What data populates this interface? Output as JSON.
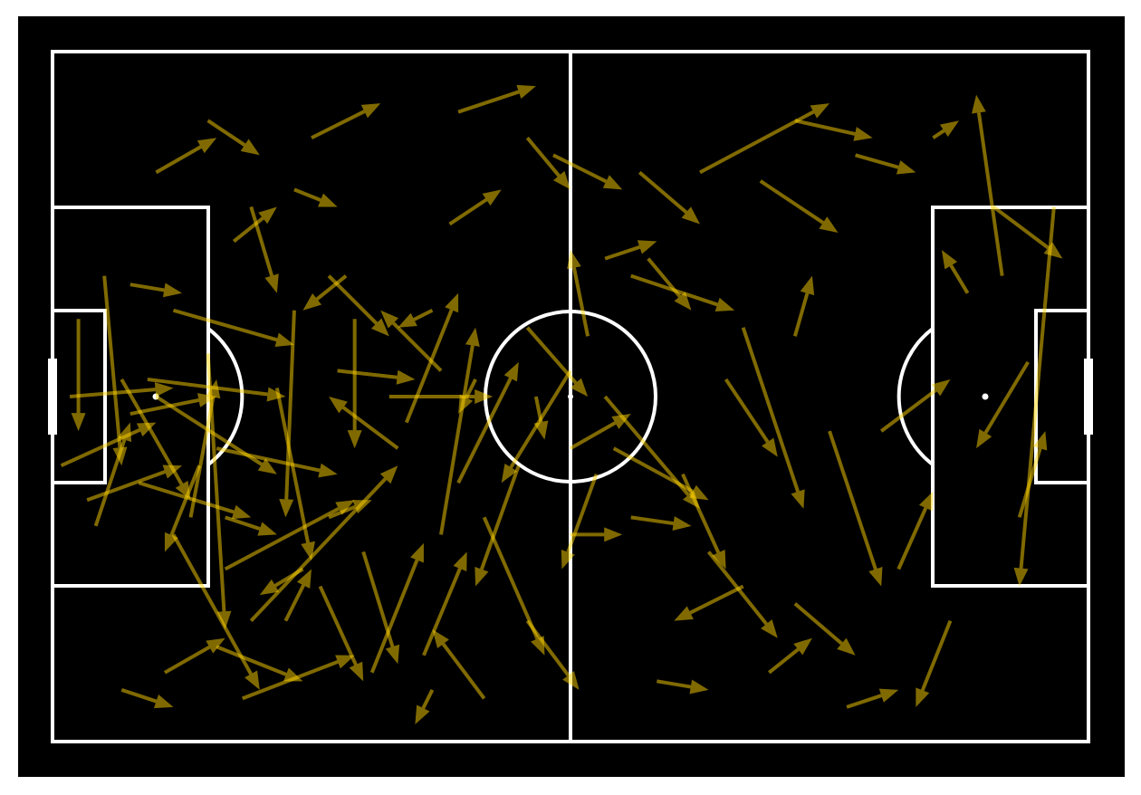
{
  "colors": {
    "background": "#000000",
    "lines": "#ffffff",
    "pass": "#ffd400"
  },
  "chart_data": {
    "type": "scatter",
    "subtype": "pass-map",
    "title": "",
    "xlabel": "",
    "ylabel": "",
    "pitch": {
      "length": 120,
      "width": 80,
      "units": "StatsBomb yards"
    },
    "passes": [
      [
        10,
        50,
        23,
        54
      ],
      [
        20,
        54,
        26,
        56
      ],
      [
        32,
        54,
        37,
        52
      ],
      [
        54,
        48,
        49,
        62
      ],
      [
        67,
        54,
        74,
        55
      ],
      [
        34,
        26,
        29,
        30
      ],
      [
        44,
        30,
        40,
        32
      ],
      [
        49,
        38,
        47,
        42
      ],
      [
        56,
        40,
        57,
        45
      ],
      [
        65,
        46,
        76,
        52
      ],
      [
        3,
        31,
        3,
        44
      ],
      [
        5,
        55,
        9,
        43
      ],
      [
        6,
        26,
        8,
        48
      ],
      [
        9,
        42,
        19,
        40
      ],
      [
        11,
        38,
        27,
        40
      ],
      [
        12,
        40,
        26,
        49
      ],
      [
        14,
        30,
        28,
        34
      ],
      [
        14,
        56,
        24,
        74
      ],
      [
        16,
        54,
        19,
        38
      ],
      [
        18,
        35,
        20,
        67
      ],
      [
        19,
        46,
        33,
        49
      ],
      [
        19,
        69,
        29,
        73
      ],
      [
        20,
        60,
        35,
        52
      ],
      [
        23,
        66,
        40,
        48
      ],
      [
        26,
        39,
        30,
        59
      ],
      [
        28,
        30,
        27,
        54
      ],
      [
        29,
        60,
        24,
        63
      ],
      [
        31,
        62,
        36,
        73
      ],
      [
        32,
        26,
        39,
        33
      ],
      [
        35,
        31,
        35,
        46
      ],
      [
        36,
        58,
        40,
        71
      ],
      [
        39,
        40,
        51,
        40
      ],
      [
        41,
        43,
        47,
        28
      ],
      [
        44,
        74,
        42,
        78
      ],
      [
        45,
        56,
        49,
        32
      ],
      [
        47,
        50,
        54,
        36
      ],
      [
        50,
        54,
        57,
        70
      ],
      [
        55,
        66,
        61,
        74
      ],
      [
        60,
        37,
        52,
        50
      ],
      [
        62,
        33,
        60,
        23
      ],
      [
        64,
        40,
        75,
        53
      ],
      [
        67,
        26,
        79,
        30
      ],
      [
        69,
        24,
        74,
        30
      ],
      [
        73,
        49,
        78,
        60
      ],
      [
        78,
        38,
        84,
        47
      ],
      [
        80,
        32,
        87,
        53
      ],
      [
        82,
        15,
        91,
        21
      ],
      [
        86,
        33,
        88,
        26
      ],
      [
        90,
        44,
        96,
        62
      ],
      [
        96,
        44,
        104,
        38
      ],
      [
        98,
        60,
        102,
        51
      ],
      [
        104,
        66,
        100,
        76
      ],
      [
        106,
        28,
        103,
        23
      ],
      [
        110,
        26,
        107,
        5
      ],
      [
        112,
        54,
        115,
        44
      ],
      [
        113,
        36,
        107,
        46
      ],
      [
        116,
        18,
        112,
        62
      ],
      [
        109,
        18,
        117,
        24
      ],
      [
        75,
        14,
        90,
        6
      ],
      [
        40,
        46,
        32,
        40
      ],
      [
        9,
        27,
        15,
        28
      ],
      [
        13,
        72,
        20,
        68
      ],
      [
        22,
        75,
        35,
        70
      ],
      [
        17,
        48,
        13,
        58
      ],
      [
        8,
        38,
        16,
        52
      ],
      [
        37,
        72,
        43,
        57
      ],
      [
        27,
        66,
        30,
        60
      ],
      [
        23,
        18,
        26,
        28
      ],
      [
        12,
        14,
        19,
        10
      ],
      [
        46,
        20,
        52,
        16
      ],
      [
        58,
        12,
        66,
        16
      ],
      [
        68,
        14,
        75,
        20
      ],
      [
        86,
        8,
        95,
        10
      ],
      [
        93,
        12,
        100,
        14
      ],
      [
        102,
        10,
        105,
        8
      ],
      [
        60,
        56,
        66,
        56
      ],
      [
        60,
        46,
        67,
        42
      ],
      [
        55,
        32,
        62,
        40
      ],
      [
        45,
        37,
        38,
        30
      ],
      [
        33,
        37,
        42,
        38
      ],
      [
        28,
        16,
        33,
        18
      ],
      [
        21,
        22,
        26,
        18
      ],
      [
        2,
        40,
        14,
        39
      ],
      [
        1,
        48,
        12,
        43
      ],
      [
        4,
        52,
        15,
        48
      ],
      [
        18,
        8,
        24,
        12
      ],
      [
        30,
        10,
        38,
        6
      ],
      [
        47,
        7,
        56,
        4
      ],
      [
        55,
        10,
        60,
        16
      ],
      [
        64,
        24,
        70,
        22
      ],
      [
        80,
        62,
        72,
        66
      ],
      [
        76,
        58,
        84,
        68
      ],
      [
        86,
        64,
        93,
        70
      ],
      [
        92,
        76,
        98,
        74
      ],
      [
        70,
        73,
        76,
        74
      ],
      [
        8,
        74,
        14,
        76
      ],
      [
        50,
        75,
        44,
        67
      ],
      [
        43,
        70,
        48,
        58
      ],
      [
        63,
        49,
        59,
        60
      ],
      [
        83,
        72,
        88,
        68
      ]
    ]
  }
}
